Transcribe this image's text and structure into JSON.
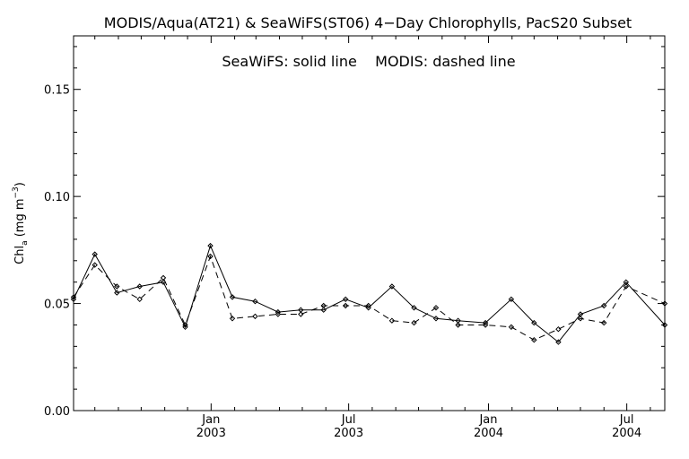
{
  "chart_data": {
    "type": "line",
    "title": "MODIS/Aqua(AT21) & SeaWiFS(ST06) 4−Day Chlorophylls, PacS20 Subset",
    "legend_note": "SeaWiFS: solid line    MODIS: dashed line",
    "ylabel": {
      "base": "Chl",
      "sub": "a",
      "units_open": " (mg m",
      "sup": "−3",
      "units_close": ")"
    },
    "ylim": [
      0,
      0.175
    ],
    "y_ticks": [
      {
        "value": 0.0,
        "label": "0.00"
      },
      {
        "value": 0.05,
        "label": "0.05"
      },
      {
        "value": 0.1,
        "label": "0.10"
      },
      {
        "value": 0.15,
        "label": "0.15"
      }
    ],
    "xlim": [
      "2002-07-04",
      "2004-08-20"
    ],
    "x_ticks": [
      {
        "date": "2003-01-01",
        "month": "Jan",
        "year": "2003"
      },
      {
        "date": "2003-07-01",
        "month": "Jul",
        "year": "2003"
      },
      {
        "date": "2004-01-01",
        "month": "Jan",
        "year": "2004"
      },
      {
        "date": "2004-07-01",
        "month": "Jul",
        "year": "2004"
      }
    ],
    "grid": false,
    "series": [
      {
        "name": "SeaWiFS",
        "style": "solid",
        "color": "#000000",
        "points": [
          [
            "2002-07-04",
            0.052
          ],
          [
            "2002-08-01",
            0.073
          ],
          [
            "2002-08-30",
            0.055
          ],
          [
            "2002-09-29",
            0.058
          ],
          [
            "2002-10-30",
            0.06
          ],
          [
            "2002-11-28",
            0.039
          ],
          [
            "2002-12-31",
            0.077
          ],
          [
            "2003-01-29",
            0.053
          ],
          [
            "2003-02-28",
            0.051
          ],
          [
            "2003-03-30",
            0.046
          ],
          [
            "2003-04-29",
            0.047
          ],
          [
            "2003-05-29",
            0.047
          ],
          [
            "2003-06-27",
            0.052
          ],
          [
            "2003-07-27",
            0.048
          ],
          [
            "2003-08-27",
            0.058
          ],
          [
            "2003-09-25",
            0.048
          ],
          [
            "2003-10-24",
            0.043
          ],
          [
            "2003-11-22",
            0.042
          ],
          [
            "2003-12-28",
            0.041
          ],
          [
            "2004-01-31",
            0.052
          ],
          [
            "2004-03-01",
            0.041
          ],
          [
            "2004-04-02",
            0.032
          ],
          [
            "2004-05-01",
            0.045
          ],
          [
            "2004-06-01",
            0.049
          ],
          [
            "2004-06-30",
            0.06
          ],
          [
            "2004-08-20",
            0.04
          ]
        ]
      },
      {
        "name": "MODIS",
        "style": "dashed",
        "color": "#000000",
        "points": [
          [
            "2002-07-04",
            0.053
          ],
          [
            "2002-08-01",
            0.068
          ],
          [
            "2002-08-30",
            0.058
          ],
          [
            "2002-09-29",
            0.052
          ],
          [
            "2002-10-30",
            0.062
          ],
          [
            "2002-11-28",
            0.04
          ],
          [
            "2002-12-31",
            0.072
          ],
          [
            "2003-01-29",
            0.043
          ],
          [
            "2003-02-28",
            0.044
          ],
          [
            "2003-03-30",
            0.045
          ],
          [
            "2003-04-29",
            0.045
          ],
          [
            "2003-05-29",
            0.049
          ],
          [
            "2003-06-27",
            0.049
          ],
          [
            "2003-07-27",
            0.049
          ],
          [
            "2003-08-27",
            0.042
          ],
          [
            "2003-09-25",
            0.041
          ],
          [
            "2003-10-24",
            0.048
          ],
          [
            "2003-11-22",
            0.04
          ],
          [
            "2003-12-28",
            0.04
          ],
          [
            "2004-01-31",
            0.039
          ],
          [
            "2004-03-01",
            0.033
          ],
          [
            "2004-04-02",
            0.038
          ],
          [
            "2004-05-01",
            0.043
          ],
          [
            "2004-06-01",
            0.041
          ],
          [
            "2004-06-30",
            0.058
          ],
          [
            "2004-08-20",
            0.05
          ]
        ]
      }
    ]
  }
}
